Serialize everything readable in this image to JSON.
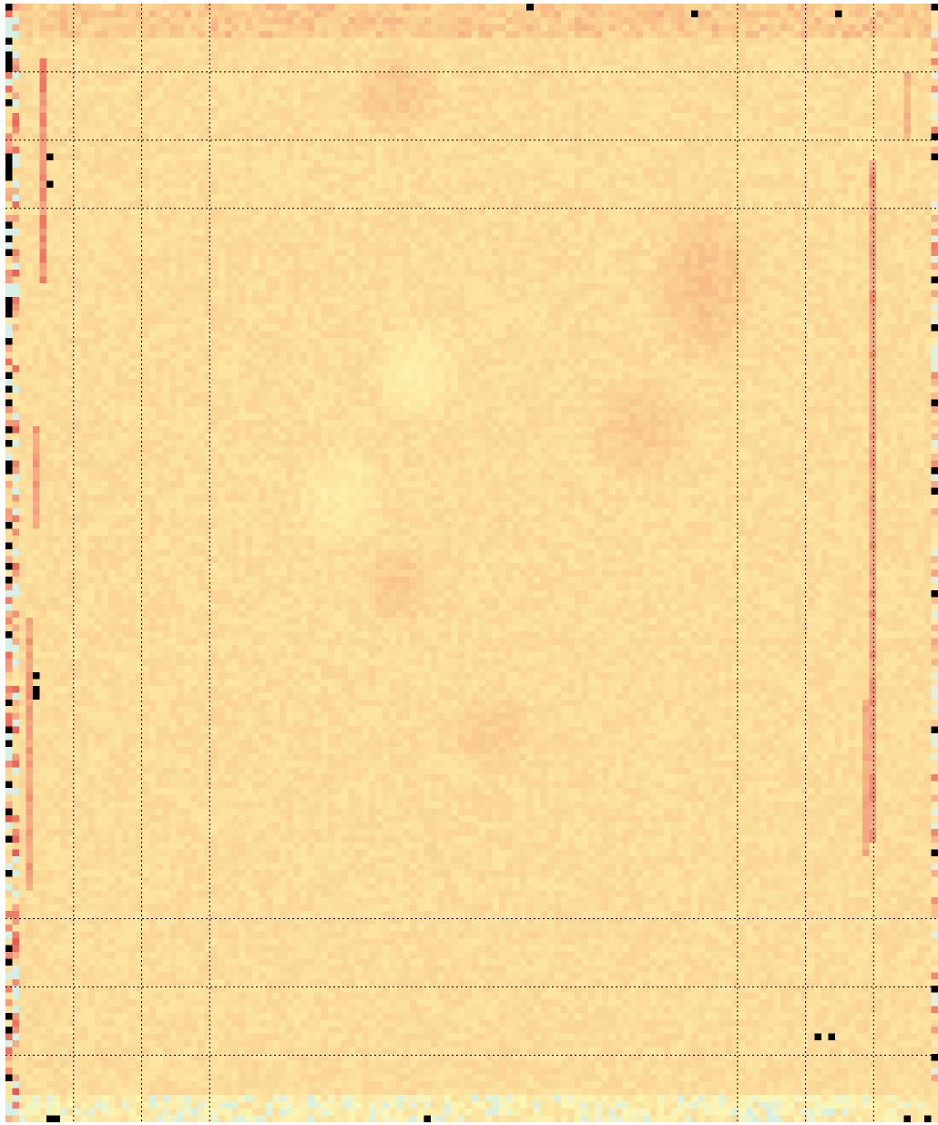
{
  "chart_data": {
    "type": "heatmap",
    "title": "",
    "xlabel": "",
    "ylabel": "",
    "colormap": {
      "name": "diverging-blue-yellow-red",
      "stops": [
        "#c9eef7",
        "#fdf6b3",
        "#fde3a0",
        "#f9c98c",
        "#f4a582",
        "#e8584a"
      ],
      "missing_color": "#000000"
    },
    "value_range": [
      0,
      1
    ],
    "grid": true,
    "grid_style": "dotted-black",
    "grid_columns_count": 136,
    "grid_rows_count": 164,
    "dashed_gridlines": {
      "vertical_fractions": [
        0.073,
        0.146,
        0.219,
        0.785,
        0.858,
        0.931
      ],
      "horizontal_fractions": [
        0.061,
        0.122,
        0.183,
        0.818,
        0.879,
        0.94
      ]
    },
    "background_level": 0.45,
    "features": {
      "left_border_noise": 0.7,
      "right_border_noise": 0.6,
      "top_border_level": 0.6,
      "bottom_border_level": 0.25,
      "vertical_streaks": [
        {
          "x": 0.04,
          "y": [
            0.05,
            0.25
          ],
          "value": 0.85
        },
        {
          "x": 0.033,
          "y": [
            0.38,
            0.47
          ],
          "value": 0.8
        },
        {
          "x": 0.028,
          "y": [
            0.55,
            0.79
          ],
          "value": 0.8
        },
        {
          "x": 0.928,
          "y": [
            0.14,
            0.75
          ],
          "value": 0.8
        },
        {
          "x": 0.923,
          "y": [
            0.62,
            0.76
          ],
          "value": 0.75
        },
        {
          "x": 0.966,
          "y": [
            0.06,
            0.12
          ],
          "value": 0.7
        }
      ],
      "warm_blobs": [
        {
          "x": 0.75,
          "y": 0.25,
          "rx": 0.06,
          "ry": 0.08,
          "value": 0.62
        },
        {
          "x": 0.68,
          "y": 0.38,
          "rx": 0.06,
          "ry": 0.05,
          "value": 0.58
        },
        {
          "x": 0.42,
          "y": 0.52,
          "rx": 0.04,
          "ry": 0.04,
          "value": 0.58
        },
        {
          "x": 0.42,
          "y": 0.08,
          "rx": 0.05,
          "ry": 0.04,
          "value": 0.6
        },
        {
          "x": 0.52,
          "y": 0.65,
          "rx": 0.05,
          "ry": 0.04,
          "value": 0.55
        }
      ],
      "cool_blobs": [
        {
          "x": 0.44,
          "y": 0.33,
          "rx": 0.05,
          "ry": 0.05,
          "value": 0.3
        },
        {
          "x": 0.36,
          "y": 0.44,
          "rx": 0.05,
          "ry": 0.05,
          "value": 0.32
        }
      ],
      "missing_cells": [
        [
          0.045,
          0.14
        ],
        [
          0.045,
          0.16
        ],
        [
          0.03,
          0.6
        ],
        [
          0.03,
          0.61
        ],
        [
          0.03,
          0.62
        ],
        [
          0.87,
          0.923
        ],
        [
          0.885,
          0.923
        ],
        [
          0.45,
          0.995
        ],
        [
          0.97,
          0.995
        ],
        [
          0.99,
          0.995
        ],
        [
          0.56,
          0.003
        ],
        [
          0.74,
          0.01
        ],
        [
          0.89,
          0.01
        ],
        [
          0.05,
          0.995
        ],
        [
          0.055,
          0.995
        ]
      ]
    },
    "seed": 1307
  }
}
